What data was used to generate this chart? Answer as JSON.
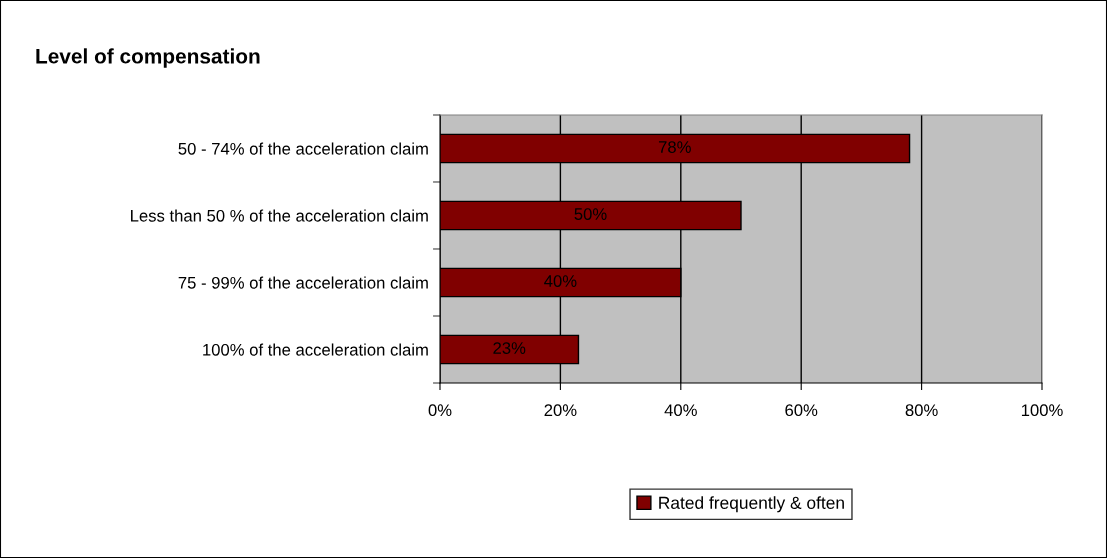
{
  "chart_data": {
    "type": "bar",
    "orientation": "horizontal",
    "title": "Level of compensation",
    "categories": [
      "50 - 74% of the acceleration claim",
      "Less than 50 % of the acceleration claim",
      "75 - 99% of the acceleration claim",
      "100% of the acceleration claim"
    ],
    "series": [
      {
        "name": "Rated frequently & often",
        "color": "#800000",
        "values": [
          78,
          50,
          40,
          23
        ],
        "value_labels": [
          "78%",
          "50%",
          "40%",
          "23%"
        ]
      }
    ],
    "xlim": [
      0,
      100
    ],
    "xticks": [
      {
        "value": 0,
        "label": "0%"
      },
      {
        "value": 20,
        "label": "20%"
      },
      {
        "value": 40,
        "label": "40%"
      },
      {
        "value": 60,
        "label": "60%"
      },
      {
        "value": 80,
        "label": "80%"
      },
      {
        "value": 100,
        "label": "100%"
      }
    ],
    "grid": "x",
    "legend": "bottom"
  }
}
